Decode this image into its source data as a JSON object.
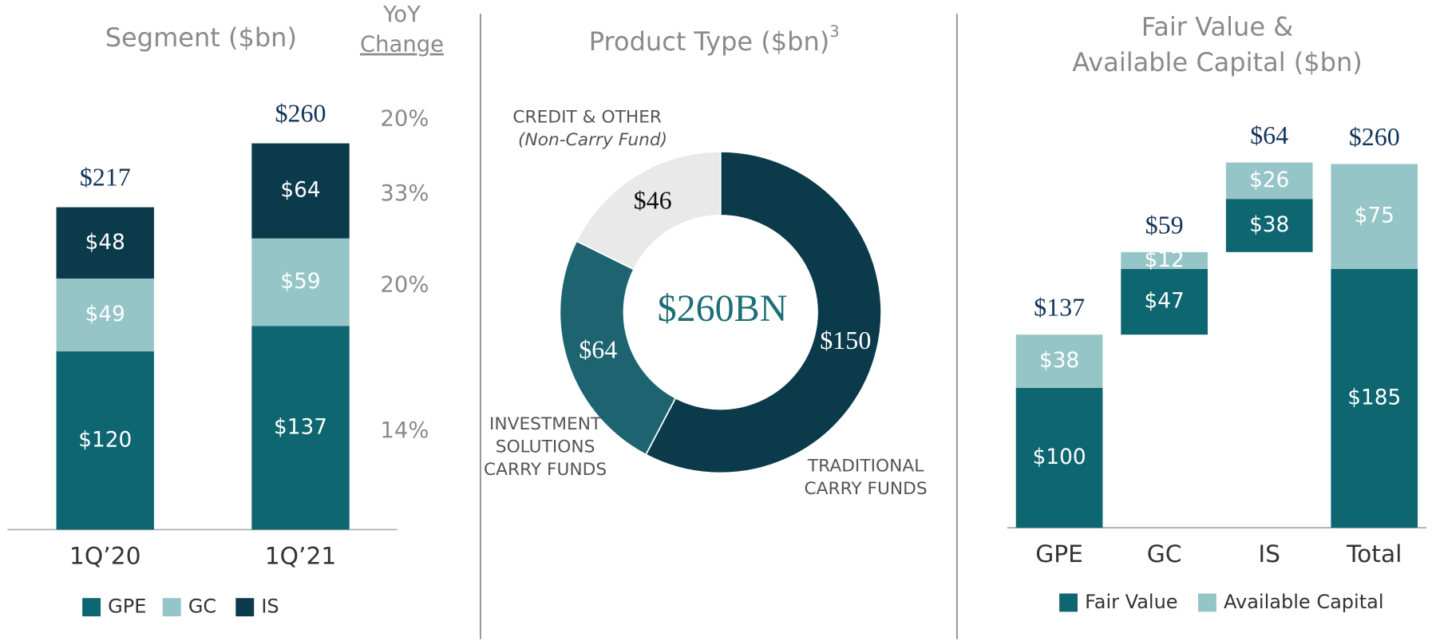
{
  "chart_data": [
    {
      "type": "stacked_bar",
      "title": "Segment ($bn)",
      "categories": [
        "1Q’20",
        "1Q’21"
      ],
      "series": [
        {
          "name": "GPE",
          "color": "#0e6670",
          "values": [
            120,
            137
          ],
          "value_labels": [
            "$120",
            "$137"
          ]
        },
        {
          "name": "GC",
          "color": "#96c5c7",
          "values": [
            49,
            59
          ],
          "value_labels": [
            "$49",
            "$59"
          ]
        },
        {
          "name": "IS",
          "color": "#0b3a4b",
          "values": [
            48,
            64
          ],
          "value_labels": [
            "$48",
            "$64"
          ]
        }
      ],
      "totals": [
        217,
        260
      ],
      "total_labels": [
        "$217",
        "$260"
      ],
      "yoy": {
        "title": [
          "YoY",
          "Change"
        ],
        "values": [
          20,
          33,
          20,
          14
        ],
        "value_labels": [
          "20%",
          "33%",
          "20%",
          "14%"
        ]
      }
    },
    {
      "type": "pie",
      "title": "Product Type ($bn)",
      "title_superscript": "3",
      "center_label": "$260BN",
      "categories": [
        [
          "TRADITIONAL",
          "CARRY FUNDS"
        ],
        [
          "INVESTMENT",
          "SOLUTIONS",
          "CARRY FUNDS"
        ],
        [
          "CREDIT & OTHER"
        ]
      ],
      "note": "(Non-Carry Fund)",
      "values": [
        150,
        64,
        46
      ],
      "value_labels": [
        "$150",
        "$64",
        "$46"
      ],
      "colors": [
        "#0b3a4b",
        "#1d6470",
        "#e9e9e9"
      ]
    },
    {
      "type": "waterfall",
      "title": [
        "Fair Value &",
        "Available Capital ($bn)"
      ],
      "categories": [
        "GPE",
        "GC",
        "IS",
        "Total"
      ],
      "series": [
        {
          "name": "Fair Value",
          "color": "#0e6670",
          "values": [
            100,
            47,
            38,
            185
          ],
          "value_labels": [
            "$100",
            "$47",
            "$38",
            "$185"
          ]
        },
        {
          "name": "Available Capital",
          "color": "#96c5c7",
          "values": [
            38,
            12,
            26,
            75
          ],
          "value_labels": [
            "$38",
            "$12",
            "$26",
            "$75"
          ]
        }
      ],
      "totals": [
        137,
        59,
        64,
        260
      ],
      "total_labels": [
        "$137",
        "$59",
        "$64",
        "$260"
      ]
    }
  ]
}
